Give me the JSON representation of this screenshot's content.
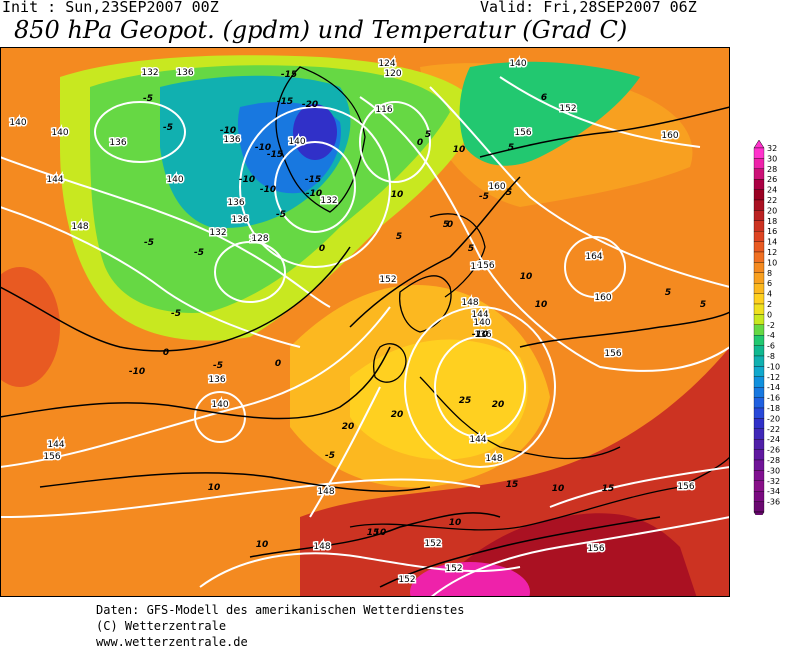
{
  "header": {
    "init": "Init : Sun,23SEP2007 00Z",
    "valid": "Valid: Fri,28SEP2007 06Z",
    "title": "850 hPa Geopot. (gpdm) und Temperatur (Grad C)"
  },
  "legend": {
    "labels": [
      "32",
      "30",
      "28",
      "26",
      "24",
      "22",
      "20",
      "18",
      "16",
      "14",
      "12",
      "10",
      "8",
      "6",
      "4",
      "2",
      "0",
      "-2",
      "-4",
      "-6",
      "-8",
      "-10",
      "-12",
      "-14",
      "-16",
      "-18",
      "-20",
      "-22",
      "-24",
      "-26",
      "-28",
      "-30",
      "-32",
      "-34",
      "-36"
    ],
    "colors": [
      "#ff33cc",
      "#ee22aa",
      "#cc1177",
      "#aa0044",
      "#990022",
      "#aa1122",
      "#bb2222",
      "#cc3322",
      "#dd4422",
      "#e85a22",
      "#f07022",
      "#f48a20",
      "#f8a020",
      "#fcb820",
      "#ffd020",
      "#f0e020",
      "#c8e820",
      "#66d844",
      "#22c870",
      "#11b890",
      "#11b0b0",
      "#11a8cc",
      "#1190dd",
      "#1878e0",
      "#2060e0",
      "#2848d8",
      "#3030c8",
      "#4028b8",
      "#5020a8",
      "#6018a0",
      "#701498",
      "#801090",
      "#881088",
      "#7a0a80",
      "#6a0870"
    ]
  },
  "map": {
    "geopotential_labels": [
      {
        "text": "132"
      },
      {
        "text": "136"
      },
      {
        "text": "140"
      },
      {
        "text": "140"
      },
      {
        "text": "136"
      },
      {
        "text": "144"
      },
      {
        "text": "140"
      },
      {
        "text": "148"
      },
      {
        "text": "136"
      },
      {
        "text": "132"
      },
      {
        "text": "128"
      },
      {
        "text": "136"
      },
      {
        "text": "136"
      },
      {
        "text": "140"
      },
      {
        "text": "128"
      },
      {
        "text": "132"
      },
      {
        "text": "120"
      },
      {
        "text": "116"
      },
      {
        "text": "124"
      },
      {
        "text": "140"
      },
      {
        "text": "152"
      },
      {
        "text": "156"
      },
      {
        "text": "160"
      },
      {
        "text": "160"
      },
      {
        "text": "156"
      },
      {
        "text": "164"
      },
      {
        "text": "160"
      },
      {
        "text": "156"
      },
      {
        "text": "156"
      },
      {
        "text": "152"
      },
      {
        "text": "148"
      },
      {
        "text": "144"
      },
      {
        "text": "140"
      },
      {
        "text": "136"
      },
      {
        "text": "144"
      },
      {
        "text": "148"
      },
      {
        "text": "144"
      },
      {
        "text": "136"
      },
      {
        "text": "140"
      },
      {
        "text": "156"
      },
      {
        "text": "148"
      },
      {
        "text": "148"
      },
      {
        "text": "152"
      },
      {
        "text": "152"
      },
      {
        "text": "152"
      },
      {
        "text": "156"
      },
      {
        "text": "156"
      }
    ],
    "temperature_labels": [
      {
        "text": "-5"
      },
      {
        "text": "-5"
      },
      {
        "text": "-10"
      },
      {
        "text": "-15"
      },
      {
        "text": "-15"
      },
      {
        "text": "-20"
      },
      {
        "text": "-10"
      },
      {
        "text": "-15"
      },
      {
        "text": "-10"
      },
      {
        "text": "-10"
      },
      {
        "text": "-15"
      },
      {
        "text": "-10"
      },
      {
        "text": "-5"
      },
      {
        "text": "-5"
      },
      {
        "text": "-5"
      },
      {
        "text": "-5"
      },
      {
        "text": "0"
      },
      {
        "text": "0"
      },
      {
        "text": "5"
      },
      {
        "text": "10"
      },
      {
        "text": "5"
      },
      {
        "text": "0"
      },
      {
        "text": "5"
      },
      {
        "text": "10"
      },
      {
        "text": "10"
      },
      {
        "text": "5"
      },
      {
        "text": "5"
      },
      {
        "text": "0"
      },
      {
        "text": "-5"
      },
      {
        "text": "-10"
      },
      {
        "text": "-5"
      },
      {
        "text": "10"
      },
      {
        "text": "10"
      },
      {
        "text": "10"
      },
      {
        "text": "10"
      },
      {
        "text": "10"
      },
      {
        "text": "15"
      },
      {
        "text": "15"
      },
      {
        "text": "20"
      },
      {
        "text": "20"
      },
      {
        "text": "25"
      },
      {
        "text": "20"
      },
      {
        "text": "15"
      },
      {
        "text": "10"
      },
      {
        "text": "0"
      },
      {
        "text": "5"
      },
      {
        "text": "5"
      },
      {
        "text": "6"
      },
      {
        "text": "5"
      },
      {
        "text": "-5"
      },
      {
        "text": "-10"
      }
    ]
  },
  "footer": {
    "line1": "Daten: GFS-Modell des amerikanischen Wetterdienstes",
    "line2": "(C) Wetterzentrale",
    "line3": "www.wetterzentrale.de"
  }
}
